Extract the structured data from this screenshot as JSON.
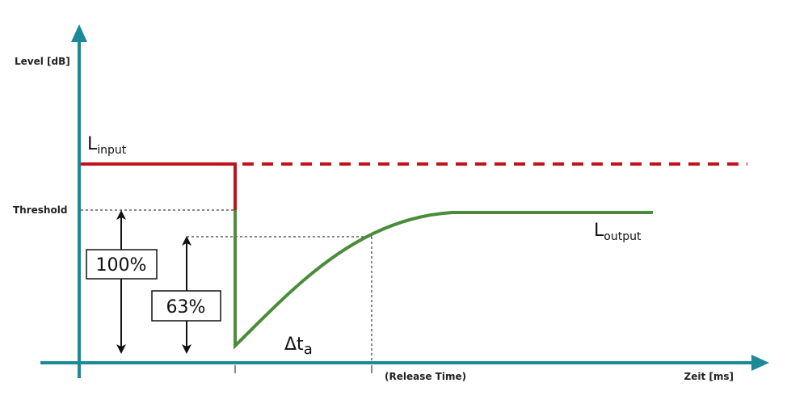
{
  "axes": {
    "y_label": "Level [dB]",
    "x_label": "Zeit [ms]"
  },
  "labels": {
    "threshold": "Threshold",
    "release_time": "(Release Time)",
    "input": {
      "main": "L",
      "sub": "input"
    },
    "output": {
      "main": "L",
      "sub": "output"
    },
    "delta": {
      "main": "Δt",
      "sub": "a"
    }
  },
  "boxes": {
    "full": "100%",
    "partial": "63%"
  }
}
